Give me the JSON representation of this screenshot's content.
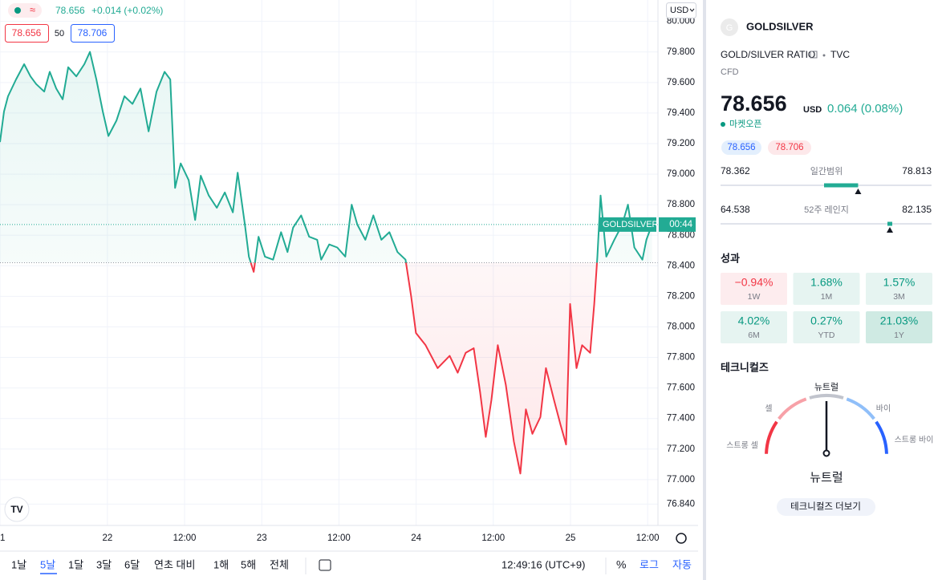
{
  "top_bar": {
    "price": "78.656",
    "change": "+0.014 (+0.02%)",
    "bid": "78.656",
    "spread": "50",
    "ask": "78.706",
    "currency": "USD"
  },
  "chart_data": {
    "type": "line",
    "baseline": 78.42,
    "colors": {
      "above": "#22ab94",
      "below": "#f23645"
    },
    "x": [
      7.3,
      7.92,
      8.55,
      9.8,
      11.05,
      12.04,
      12.92,
      14.17,
      15.04,
      16.04,
      17.04,
      17.91,
      19.16,
      20.41,
      21.28,
      22.28,
      23.28,
      24.15,
      25.4,
      26.65,
      27.9,
      29.15,
      30.4,
      31.64,
      32.89,
      33.77,
      34.52,
      35.39,
      36.64,
      37.64,
      38.51,
      39.76,
      41.01,
      42.26,
      43.5,
      44.25,
      45.38,
      46.0,
      46.75,
      47.5,
      48.5,
      49.75,
      51.0,
      52.0,
      52.87,
      54.12,
      55.37,
      56.61,
      57.24,
      58.49,
      59.73,
      60.98,
      61.98,
      62.86,
      64.1,
      65.35,
      66.6,
      67.85,
      69.1,
      70.35,
      71.22,
      71.97,
      73.47,
      75.34,
      77.21,
      78.46,
      79.71,
      80.96,
      81.96,
      82.83,
      83.7,
      84.7,
      85.95,
      87.2,
      88.2,
      89.07,
      90.07,
      91.32,
      92.19,
      93.44,
      94.44,
      95.32,
      95.94,
      96.94,
      97.81,
      99.06,
      99.69,
      100.18,
      100.68,
      101.56,
      102.81,
      104.05,
      104.93,
      105.93,
      107.18,
      107.8,
      108.68
    ],
    "values": [
      79.21,
      79.41,
      79.51,
      79.62,
      79.72,
      79.64,
      79.59,
      79.54,
      79.67,
      79.56,
      79.49,
      79.7,
      79.64,
      79.72,
      79.8,
      79.62,
      79.41,
      79.25,
      79.35,
      79.51,
      79.46,
      79.56,
      79.28,
      79.54,
      79.67,
      79.62,
      78.91,
      79.07,
      78.96,
      78.7,
      78.99,
      78.86,
      78.78,
      78.88,
      78.75,
      79.01,
      78.67,
      78.46,
      78.36,
      78.59,
      78.46,
      78.44,
      78.62,
      78.49,
      78.65,
      78.73,
      78.59,
      78.57,
      78.44,
      78.54,
      78.52,
      78.46,
      78.8,
      78.67,
      78.57,
      78.73,
      78.57,
      78.62,
      78.49,
      78.44,
      78.2,
      77.96,
      77.88,
      77.73,
      77.81,
      77.7,
      77.83,
      77.86,
      77.57,
      77.28,
      77.52,
      77.88,
      77.62,
      77.25,
      77.04,
      77.46,
      77.3,
      77.41,
      77.73,
      77.52,
      77.36,
      77.23,
      78.15,
      77.73,
      77.88,
      77.83,
      78.15,
      78.46,
      78.86,
      78.46,
      78.57,
      78.67,
      78.8,
      78.52,
      78.44,
      78.57,
      78.67
    ],
    "xlim": [
      7.3,
      109.6
    ],
    "xticks": [
      {
        "value": 7.3,
        "label": "1"
      },
      {
        "value": 24,
        "label": "22"
      },
      {
        "value": 36,
        "label": "12:00"
      },
      {
        "value": 48,
        "label": "23"
      },
      {
        "value": 60,
        "label": "12:00"
      },
      {
        "value": 72,
        "label": "24"
      },
      {
        "value": 84,
        "label": "12:00"
      },
      {
        "value": 96,
        "label": "25"
      },
      {
        "value": 108,
        "label": "12:00"
      }
    ],
    "ylim": [
      76.7,
      80.14
    ],
    "yticks": [
      {
        "value": 80,
        "label": "80.000"
      },
      {
        "value": 79.8,
        "label": "79.800"
      },
      {
        "value": 79.6,
        "label": "79.600"
      },
      {
        "value": 79.4,
        "label": "79.400"
      },
      {
        "value": 79.2,
        "label": "79.200"
      },
      {
        "value": 79,
        "label": "79.000"
      },
      {
        "value": 78.8,
        "label": "78.800"
      },
      {
        "value": 78.6,
        "label": "78.600"
      },
      {
        "value": 78.4,
        "label": "78.400"
      },
      {
        "value": 78.2,
        "label": "78.200"
      },
      {
        "value": 78,
        "label": "78.000"
      },
      {
        "value": 77.8,
        "label": "77.800"
      },
      {
        "value": 77.6,
        "label": "77.600"
      },
      {
        "value": 77.4,
        "label": "77.400"
      },
      {
        "value": 77.2,
        "label": "77.200"
      },
      {
        "value": 77,
        "label": "77.000"
      },
      {
        "value": 76.84,
        "label": "76.840"
      }
    ],
    "grid": true
  },
  "axis_label": {
    "symbol": "GOLDSILVER",
    "countdown": "00:44"
  },
  "toolbar": {
    "ranges": [
      "1날",
      "5날",
      "1달",
      "3달",
      "6달",
      "연초 대비",
      "1해",
      "5해",
      "전체"
    ],
    "time": "12:49:16 (UTC+9)",
    "percent": "%",
    "log": "로그",
    "auto": "자동"
  },
  "panel": {
    "avatar": "G",
    "symbol": "GOLDSILVER",
    "name": "GOLD/SILVER RATIO",
    "exchange": "TVC",
    "kind": "CFD",
    "price": "78.656",
    "currency": "USD",
    "change": "0.064 (0.08%)",
    "status": "마켓오픈",
    "bid": "78.656",
    "ask": "78.706",
    "day_range": {
      "low": "78.362",
      "label": "일간범위",
      "high": "78.813"
    },
    "year_range": {
      "low": "64.538",
      "label": "52주 레인지",
      "high": "82.135"
    },
    "performance_title": "성과",
    "performance": [
      {
        "value": "−0.94%",
        "label": "1W"
      },
      {
        "value": "1.68%",
        "label": "1M"
      },
      {
        "value": "1.57%",
        "label": "3M"
      },
      {
        "value": "4.02%",
        "label": "6M"
      },
      {
        "value": "0.27%",
        "label": "YTD"
      },
      {
        "value": "21.03%",
        "label": "1Y"
      }
    ],
    "technicals_title": "테크니컬즈",
    "gauge": {
      "sell": "셀",
      "neutral": "뉴트럴",
      "buy": "바이",
      "strong_sell": "스트롱 셀",
      "strong_buy": "스트롱 바이"
    },
    "rating": "뉴트럴",
    "more": "테크니컬즈 더보기"
  }
}
